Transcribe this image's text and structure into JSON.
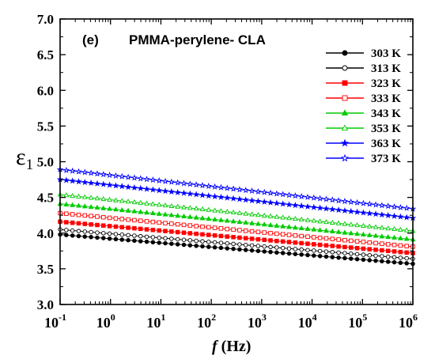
{
  "chart_data": {
    "type": "line",
    "panel_label": "(e)",
    "title": "PMMA-perylene- CLA",
    "xlabel": {
      "italic": "f",
      "rest": " (Hz)"
    },
    "ylabel": {
      "main": "ε",
      "sub": "1"
    },
    "x_scale": "log",
    "xlim": [
      0.1,
      1000000
    ],
    "ylim": [
      3.0,
      7.0
    ],
    "x_ticks": [
      {
        "base": "10",
        "exp": "-1",
        "value": 0.1
      },
      {
        "base": "10",
        "exp": "0",
        "value": 1
      },
      {
        "base": "10",
        "exp": "1",
        "value": 10
      },
      {
        "base": "10",
        "exp": "2",
        "value": 100
      },
      {
        "base": "10",
        "exp": "3",
        "value": 1000
      },
      {
        "base": "10",
        "exp": "4",
        "value": 10000
      },
      {
        "base": "10",
        "exp": "5",
        "value": 100000
      },
      {
        "base": "10",
        "exp": "6",
        "value": 1000000
      }
    ],
    "y_ticks": [
      "3.0",
      "3.5",
      "4.0",
      "4.5",
      "5.0",
      "5.5",
      "6.0",
      "6.5",
      "7.0"
    ],
    "legend_position": "top-right",
    "x": [
      0.1,
      1000000
    ],
    "series": [
      {
        "name": "303 K",
        "color": "#000000",
        "marker": "circle",
        "filled": true,
        "values": [
          3.98,
          3.57
        ]
      },
      {
        "name": "313 K",
        "color": "#000000",
        "marker": "circle",
        "filled": false,
        "values": [
          4.05,
          3.64
        ]
      },
      {
        "name": "323 K",
        "color": "#ff0000",
        "marker": "square",
        "filled": true,
        "values": [
          4.16,
          3.72
        ]
      },
      {
        "name": "333 K",
        "color": "#ff0000",
        "marker": "square",
        "filled": false,
        "values": [
          4.28,
          3.81
        ]
      },
      {
        "name": "343 K",
        "color": "#00cc00",
        "marker": "triangle",
        "filled": true,
        "values": [
          4.41,
          3.91
        ]
      },
      {
        "name": "353 K",
        "color": "#00cc00",
        "marker": "triangle",
        "filled": false,
        "values": [
          4.54,
          4.03
        ]
      },
      {
        "name": "363 K",
        "color": "#0000ff",
        "marker": "star",
        "filled": true,
        "values": [
          4.75,
          4.21
        ]
      },
      {
        "name": "373 K",
        "color": "#0000ff",
        "marker": "star",
        "filled": false,
        "values": [
          4.89,
          4.34
        ]
      }
    ]
  }
}
